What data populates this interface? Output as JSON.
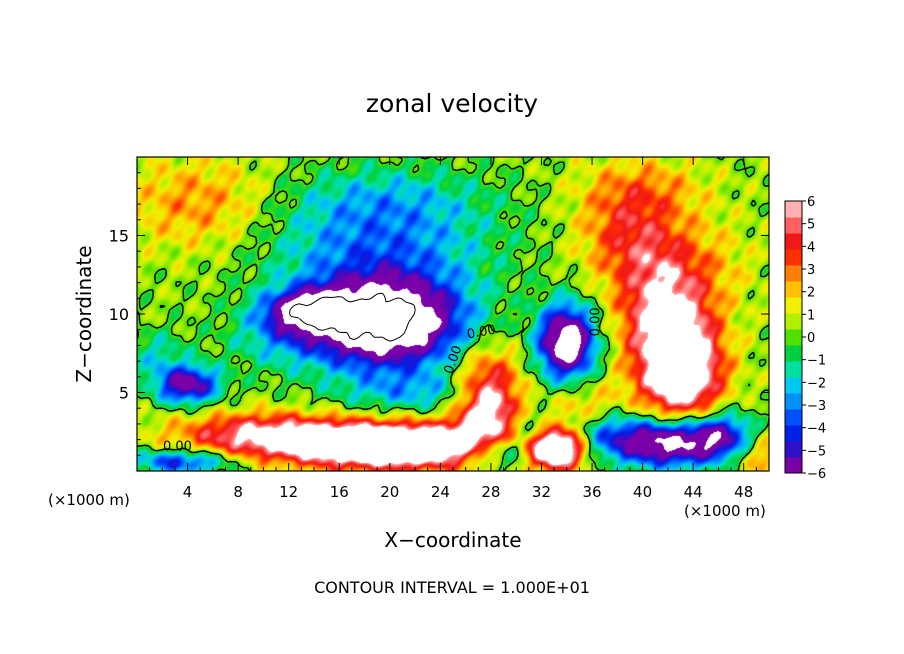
{
  "chart_data": {
    "type": "heatmap",
    "title": "zonal velocity",
    "xlabel": "X−coordinate",
    "ylabel": "Z−coordinate",
    "x_unit_left": "(×1000 m)",
    "x_unit_right": "(×1000 m)",
    "footer": "CONTOUR INTERVAL = 1.000E+01",
    "xlim": [
      0,
      50
    ],
    "ylim": [
      0,
      20
    ],
    "x_ticks": [
      4,
      8,
      12,
      16,
      20,
      24,
      28,
      32,
      36,
      40,
      44,
      48
    ],
    "y_ticks": [
      5,
      10,
      15
    ],
    "colorbar": {
      "range": [
        -6,
        6
      ],
      "ticks": [
        "6",
        "5",
        "4",
        "3",
        "2",
        "1",
        "0",
        "−1",
        "−2",
        "−3",
        "−4",
        "−5",
        "−6"
      ],
      "colors": [
        "#7a00a8",
        "#3010c8",
        "#0020e8",
        "#0050ff",
        "#0090ff",
        "#00c8f0",
        "#00e0a0",
        "#00d040",
        "#50e000",
        "#b0f000",
        "#f0f000",
        "#ffc000",
        "#ff8000",
        "#ff3000",
        "#f01818",
        "#ff6060",
        "#ffb0b0"
      ]
    },
    "contour_labels": [
      "0.00",
      "0.00",
      "0.00",
      "0.00"
    ],
    "features": [
      {
        "x": 19.5,
        "z": 9.5,
        "value": -12,
        "rx": 6.0,
        "rz": 2.8
      },
      {
        "x": 13.5,
        "z": 10.2,
        "value": -7,
        "rx": 3.2,
        "rz": 1.3
      },
      {
        "x": 19,
        "z": 14.5,
        "value": -3.5,
        "rx": 9,
        "rz": 3.5
      },
      {
        "x": 20,
        "z": 17.5,
        "value": -1.5,
        "rx": 8,
        "rz": 2
      },
      {
        "x": 11,
        "z": 8.5,
        "value": -2,
        "rx": 4,
        "rz": 2
      },
      {
        "x": 34.0,
        "z": 8.2,
        "value": -10,
        "rx": 2.2,
        "rz": 2.3
      },
      {
        "x": 4.0,
        "z": 5.5,
        "value": -7,
        "rx": 2.5,
        "rz": 1.2
      },
      {
        "x": 1.5,
        "z": 7.5,
        "value": -2,
        "rx": 2.5,
        "rz": 1.5
      },
      {
        "x": 3.5,
        "z": 0.6,
        "value": -5,
        "rx": 4,
        "rz": 0.8
      },
      {
        "x": 22,
        "z": 5.0,
        "value": -2.5,
        "rx": 6,
        "rz": 1.3
      },
      {
        "x": 28.5,
        "z": 1.2,
        "value": -7,
        "rx": 3,
        "rz": 1.2
      },
      {
        "x": 42,
        "z": 1.8,
        "value": -9,
        "rx": 4.5,
        "rz": 1.5
      },
      {
        "x": 36.5,
        "z": 2.5,
        "value": -4,
        "rx": 3,
        "rz": 1.5
      },
      {
        "x": 46.5,
        "z": 2.2,
        "value": -5,
        "rx": 2.5,
        "rz": 1.5
      },
      {
        "x": 31,
        "z": 2.6,
        "value": -3,
        "rx": 2,
        "rz": 1.2
      },
      {
        "x": 20.5,
        "z": 1.6,
        "value": 11,
        "rx": 8,
        "rz": 1.4
      },
      {
        "x": 10,
        "z": 2.3,
        "value": 5.5,
        "rx": 7,
        "rz": 1.4
      },
      {
        "x": 27.8,
        "z": 4.0,
        "value": 7,
        "rx": 2.6,
        "rz": 3.5
      },
      {
        "x": 33.0,
        "z": 1.4,
        "value": 10,
        "rx": 2.3,
        "rz": 1.3
      },
      {
        "x": 43.0,
        "z": 6.5,
        "value": 9,
        "rx": 3.2,
        "rz": 3.2
      },
      {
        "x": 41.5,
        "z": 10.5,
        "value": 5,
        "rx": 3.5,
        "rz": 3.5
      },
      {
        "x": 39,
        "z": 15.0,
        "value": 3.5,
        "rx": 4,
        "rz": 3
      },
      {
        "x": 40,
        "z": 18.0,
        "value": 2,
        "rx": 5,
        "rz": 2
      },
      {
        "x": 35.5,
        "z": 3.5,
        "value": 3,
        "rx": 3,
        "rz": 2
      },
      {
        "x": 49,
        "z": 1.2,
        "value": 3,
        "rx": 2.5,
        "rz": 1.5
      },
      {
        "x": 5,
        "z": 17,
        "value": 2.5,
        "rx": 6,
        "rz": 3
      },
      {
        "x": 45,
        "z": 13,
        "value": 1.5,
        "rx": 4,
        "rz": 3
      }
    ]
  }
}
